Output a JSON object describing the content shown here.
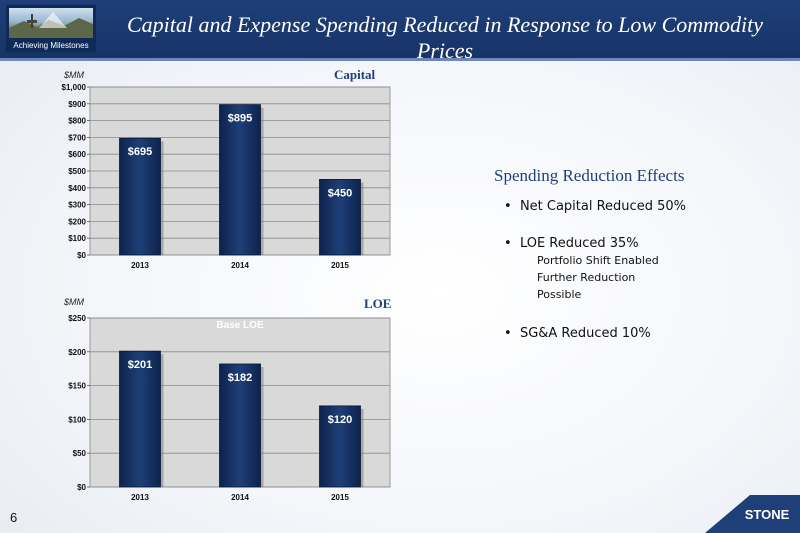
{
  "header": {
    "title": "Capital and Expense Spending Reduced in Response to Low Commodity Prices",
    "tagline": "Achieving Milestones"
  },
  "colors": {
    "header": "#1e3f78",
    "bar": "#1e3f78",
    "accent": "#1f3f7a"
  },
  "chart_data": [
    {
      "type": "bar",
      "title": "Capital",
      "ylabel": "$MM",
      "categories": [
        "2013",
        "2014",
        "2015"
      ],
      "values": [
        695,
        895,
        450
      ],
      "data_labels": [
        "$695",
        "$895",
        "$450"
      ],
      "ylim": [
        0,
        1000
      ],
      "yticks": [
        0,
        100,
        200,
        300,
        400,
        500,
        600,
        700,
        800,
        900,
        1000
      ],
      "ytick_labels": [
        "$0",
        "$100",
        "$200",
        "$300",
        "$400",
        "$500",
        "$600",
        "$700",
        "$800",
        "$900",
        "$1,000"
      ],
      "grid": true
    },
    {
      "type": "bar",
      "title": "LOE",
      "ylabel": "$MM",
      "annotation": "Base LOE",
      "categories": [
        "2013",
        "2014",
        "2015"
      ],
      "values": [
        201,
        182,
        120
      ],
      "data_labels": [
        "$201",
        "$182",
        "$120"
      ],
      "ylim": [
        0,
        250
      ],
      "yticks": [
        0,
        50,
        100,
        150,
        200,
        250
      ],
      "ytick_labels": [
        "$0",
        "$50",
        "$100",
        "$150",
        "$200",
        "$250"
      ],
      "grid": true
    }
  ],
  "effects": {
    "title": "Spending Reduction Effects",
    "bullets": [
      "Net Capital Reduced 50%",
      "LOE Reduced  35%",
      "SG&A Reduced 10%"
    ],
    "sub": [
      "Portfolio Shift Enabled",
      "Further Reduction",
      "Possible"
    ]
  },
  "page_number": "6",
  "logo_text": "STONE"
}
